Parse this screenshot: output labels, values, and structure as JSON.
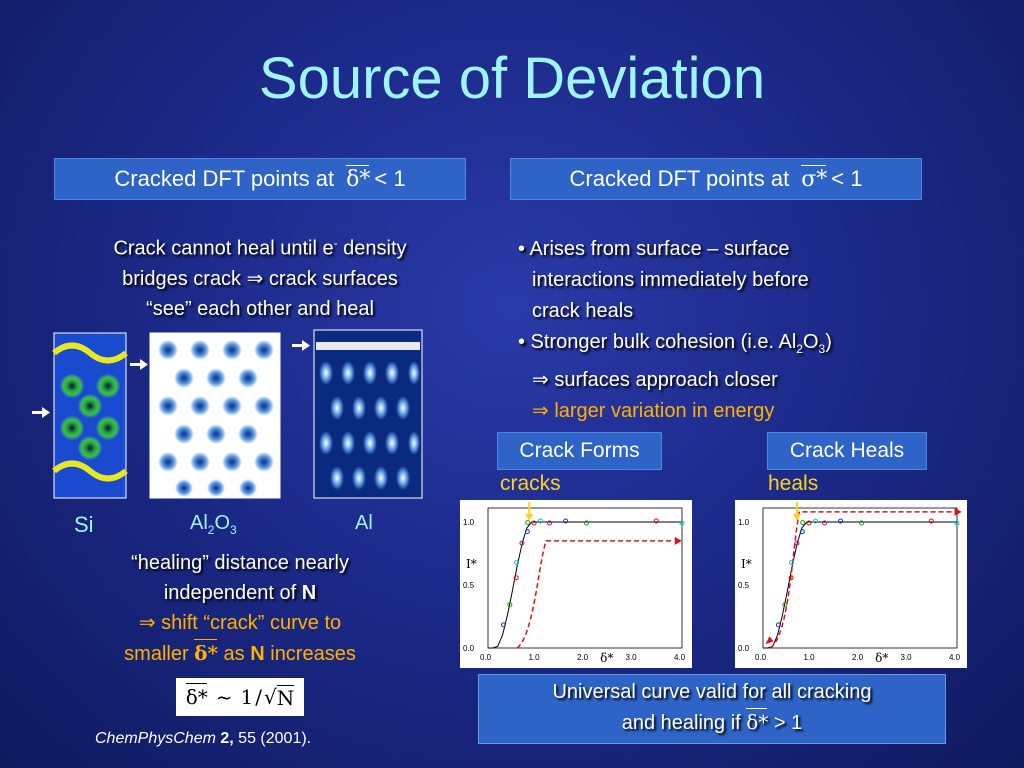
{
  "title": "Source of Deviation",
  "left_header": {
    "prefix": "Cracked DFT points at",
    "symbol": "δ*",
    "suffix": "< 1"
  },
  "right_header": {
    "prefix": "Cracked DFT points at",
    "symbol": "σ*",
    "suffix": "< 1"
  },
  "left_text": {
    "line1_a": "Crack cannot heal until e",
    "line1_sup": "-",
    "line1_b": " density",
    "line2": "bridges crack ⇒ crack surfaces",
    "line3": "“see” each other and heal"
  },
  "images": {
    "labels": {
      "si": "Si",
      "al2o3_a": "Al",
      "al2o3_sub1": "2",
      "al2o3_b": "O",
      "al2o3_sub2": "3",
      "al": "Al"
    }
  },
  "bullets": {
    "b1_l1": "• Arises from surface – surface",
    "b1_l2": "interactions immediately before",
    "b1_l3": "crack heals",
    "b2_l1_a": "• Stronger bulk cohesion (i.e. Al",
    "b2_l1_sub1": "2",
    "b2_l1_b": "O",
    "b2_l1_sub2": "3",
    "b2_l1_c": ")",
    "b2_l2": "⇒ surfaces approach closer",
    "b2_l3": "⇒ larger variation in energy"
  },
  "plots": {
    "left": {
      "box_label": "Crack Forms",
      "caption": "cracks"
    },
    "right": {
      "box_label": "Crack Heals",
      "caption": "heals"
    },
    "y_label": "I*",
    "x_label": "δ*",
    "x_ticks": [
      "0.0",
      "1.0",
      "2.0",
      "3.0",
      "4.0"
    ],
    "y_ticks": [
      "0.0",
      "0.5",
      "1.0"
    ],
    "colors": {
      "curve": "#000000",
      "dashed": "#e01010",
      "arrow": "#ffd21e"
    }
  },
  "healing": {
    "line1": "“healing” distance nearly",
    "line2_a": "independent of ",
    "line2_b": "N",
    "line3": "⇒ shift “crack” curve to",
    "line4_a": "smaller ",
    "line4_sym": "δ*",
    "line4_b": " as ",
    "line4_c": "N",
    "line4_d": " increases"
  },
  "formula": {
    "lhs": "δ*",
    "tilde": "~",
    "num": "1",
    "den": "N"
  },
  "citation": {
    "journal": "ChemPhysChem",
    "volume": " 2,",
    "rest": " 55 (2001)."
  },
  "bottom_box": {
    "line1": "Universal curve valid for all cracking",
    "line2_a": "and healing if ",
    "line2_sym": "δ*",
    "line2_b": " > 1"
  }
}
